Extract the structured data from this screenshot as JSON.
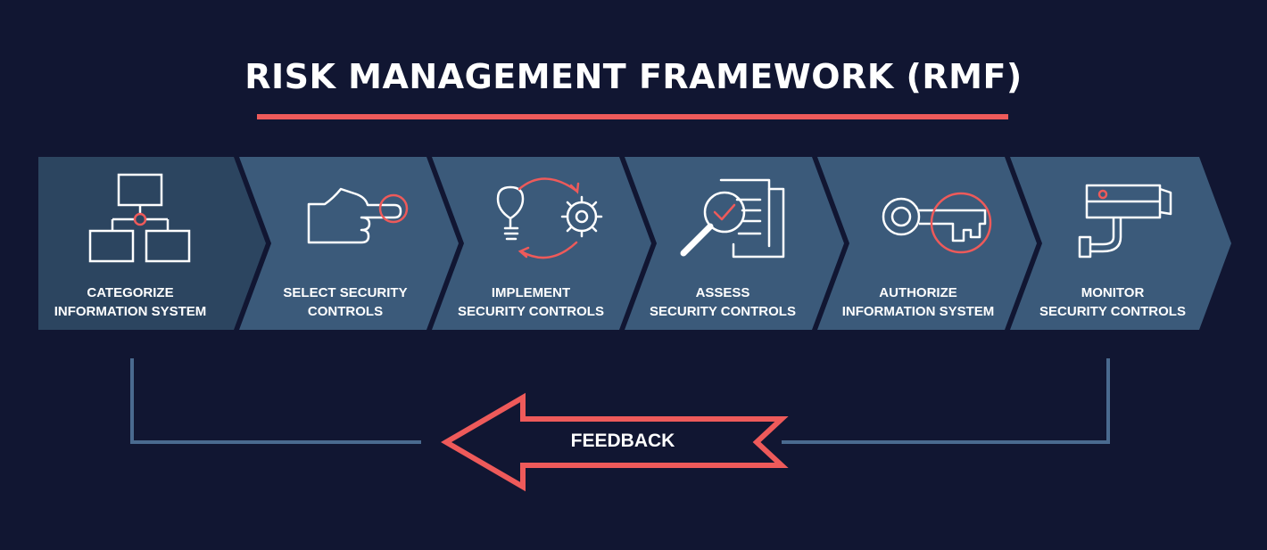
{
  "title": "RISK MANAGEMENT FRAMEWORK (RMF)",
  "colors": {
    "background": "#111632",
    "accent": "#ee5a5a",
    "step_first": "#2c4560",
    "step": "#3b5a7a",
    "connector": "#4a6a8f"
  },
  "steps": [
    {
      "line1": "CATEGORIZE",
      "line2": "INFORMATION SYSTEM",
      "icon": "hierarchy-chart-icon"
    },
    {
      "line1": "SELECT SECURITY",
      "line2": "CONTROLS",
      "icon": "pointing-hand-icon"
    },
    {
      "line1": "IMPLEMENT",
      "line2": "SECURITY CONTROLS",
      "icon": "lightbulb-gear-cycle-icon"
    },
    {
      "line1": "ASSESS",
      "line2": "SECURITY CONTROLS",
      "icon": "magnifier-document-icon"
    },
    {
      "line1": "AUTHORIZE",
      "line2": "INFORMATION SYSTEM",
      "icon": "key-icon"
    },
    {
      "line1": "MONITOR",
      "line2": "SECURITY CONTROLS",
      "icon": "security-camera-icon"
    }
  ],
  "feedback": {
    "label": "FEEDBACK",
    "direction": "left"
  }
}
